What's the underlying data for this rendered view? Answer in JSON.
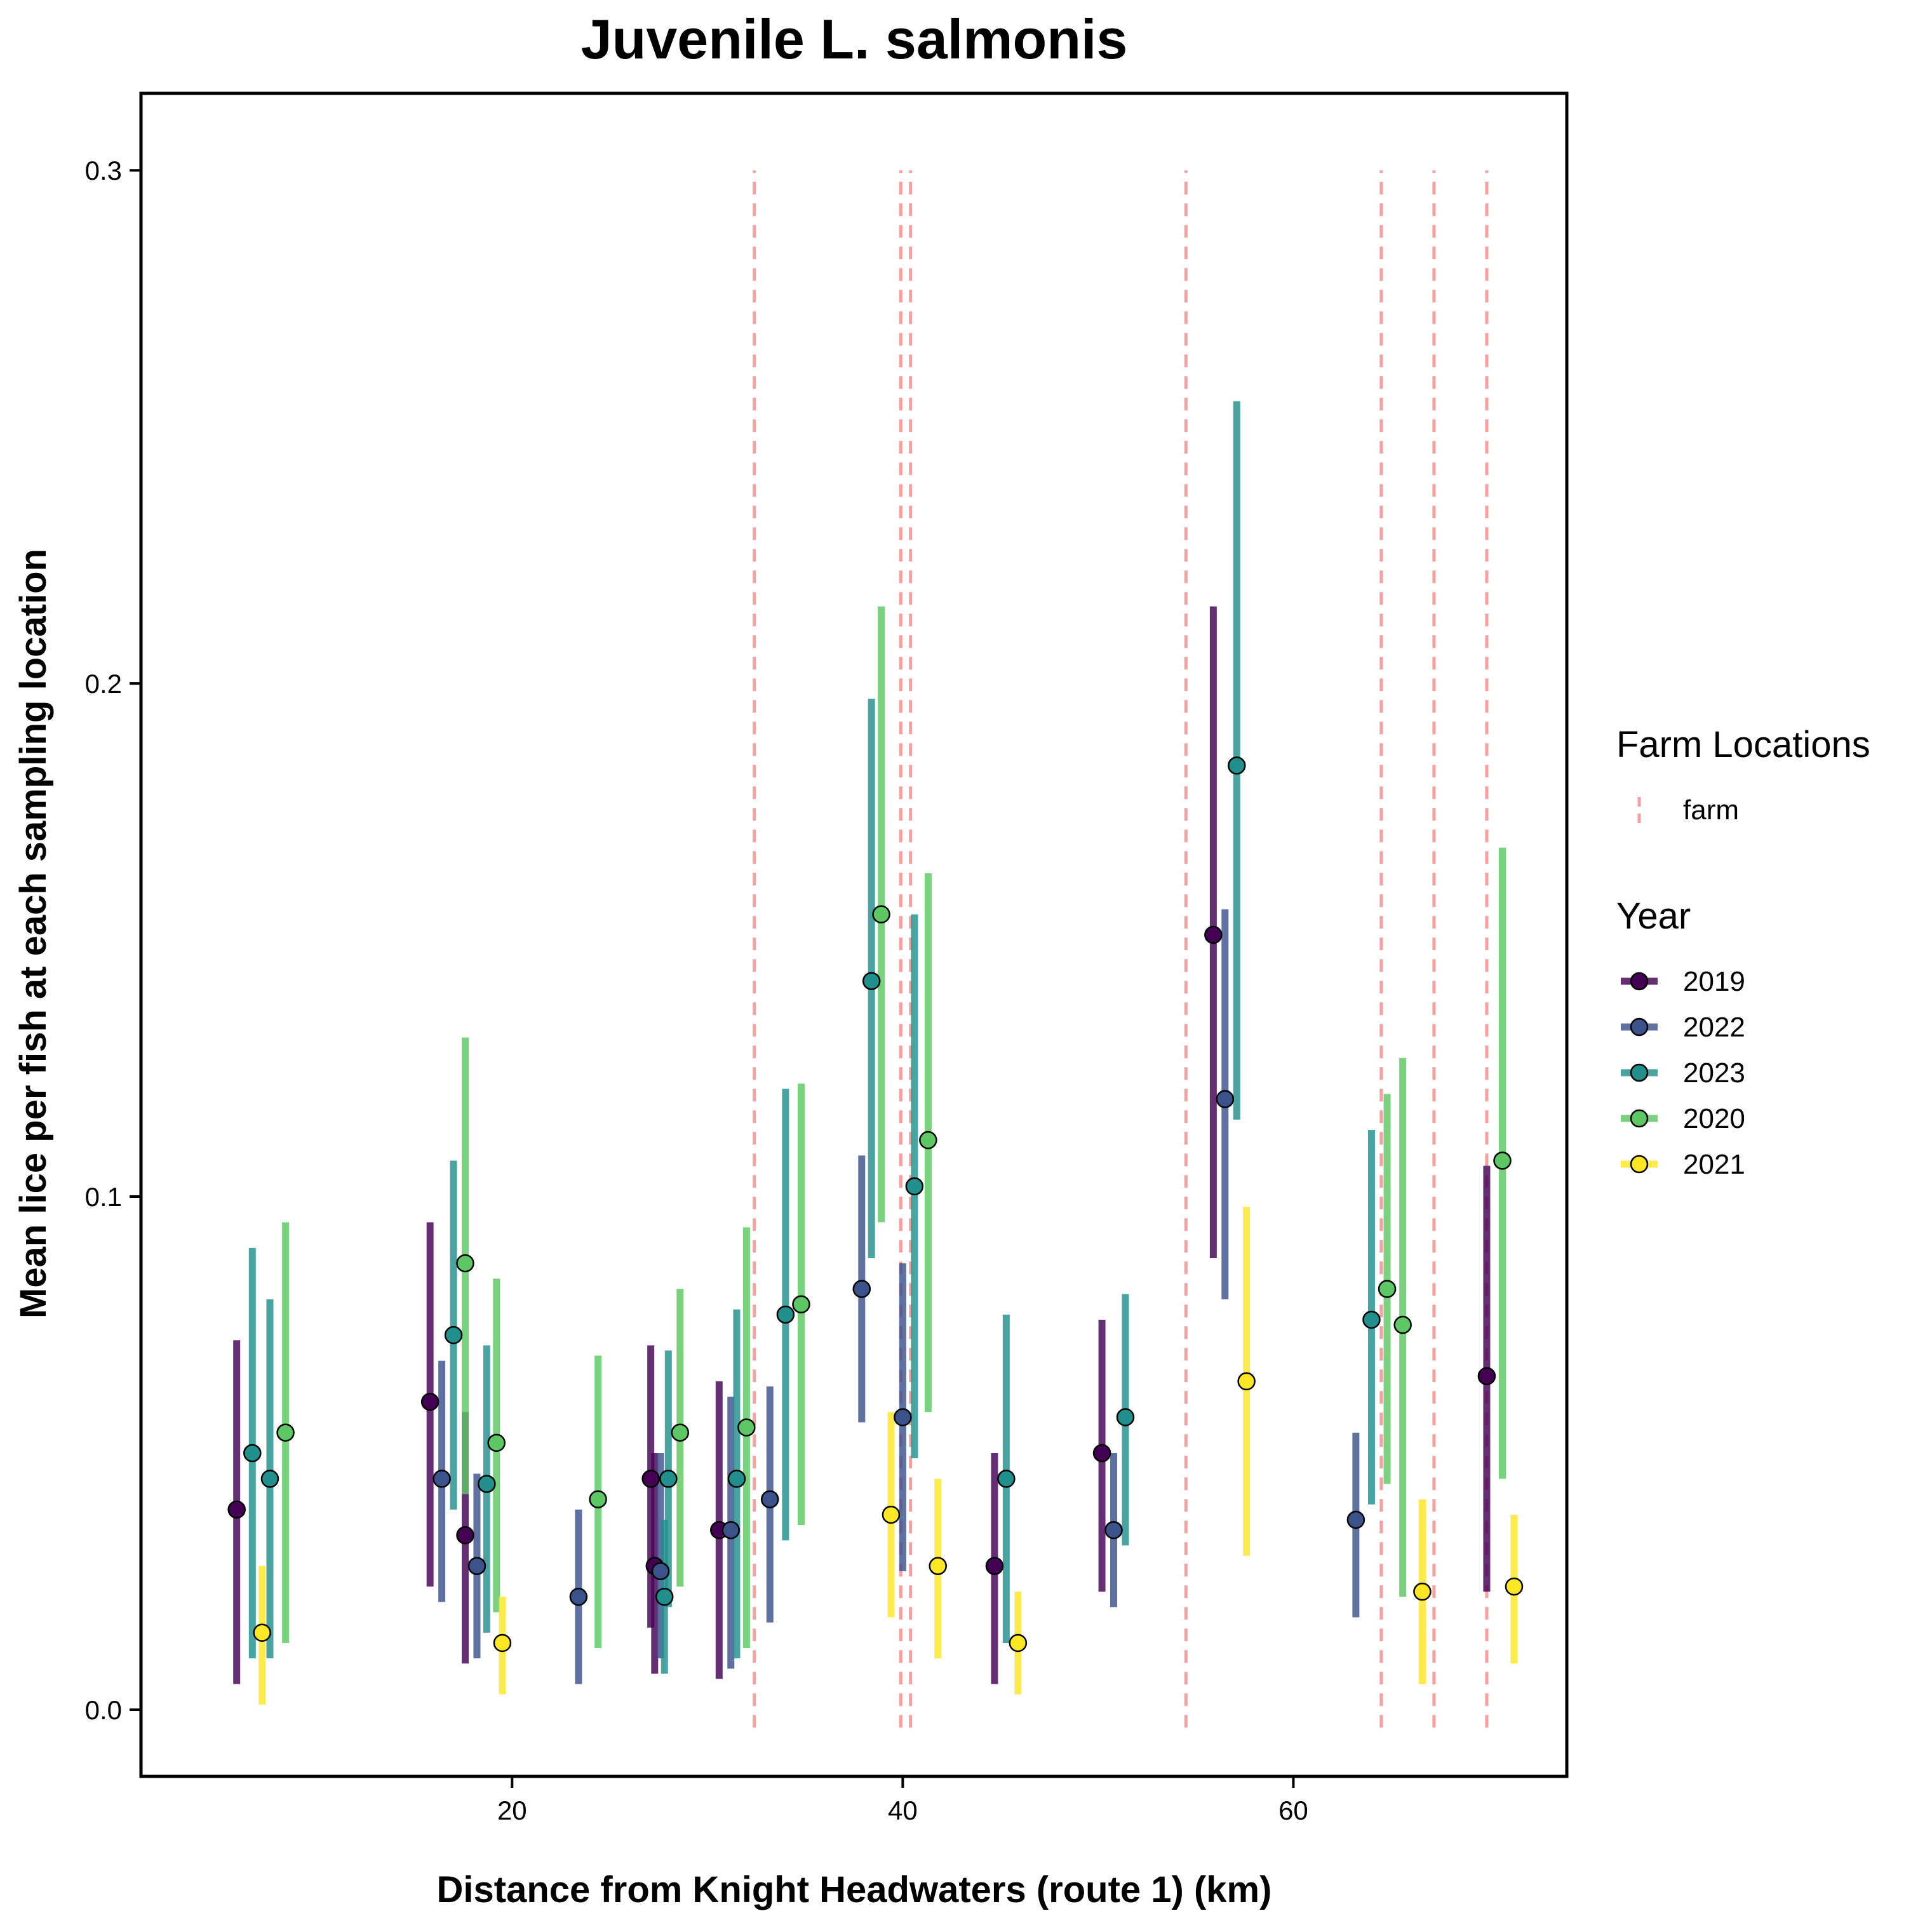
{
  "chart_data": {
    "type": "errorbar-scatter",
    "title": "Juvenile L. salmonis",
    "xlabel": "Distance from Knight Headwaters (route 1) (km)",
    "ylabel": "Mean lice per fish at each sampling location",
    "xlim": [
      1,
      74
    ],
    "ylim": [
      -0.013,
      0.315
    ],
    "xticks": [
      20,
      40,
      60
    ],
    "yticks": [
      0.0,
      0.1,
      0.2,
      0.3
    ],
    "xtick_labels": [
      "20",
      "40",
      "60"
    ],
    "ytick_labels": [
      "0.0",
      "0.1",
      "0.2",
      "0.3"
    ],
    "grid": false,
    "farm_legend": {
      "title": "Farm Locations",
      "label": "farm",
      "color": "#F8A0A0"
    },
    "year_legend_title": "Year",
    "legend_position": "right",
    "farms": [
      32.4,
      39.9,
      40.4,
      54.5,
      64.5,
      67.2,
      69.9
    ],
    "farm_ymax": 0.3,
    "series": [
      {
        "name": "2019",
        "color": "#440154",
        "points": [
          {
            "x": 5.9,
            "y": 0.039,
            "lo": 0.005,
            "hi": 0.072
          },
          {
            "x": 15.8,
            "y": 0.06,
            "lo": 0.024,
            "hi": 0.095
          },
          {
            "x": 17.6,
            "y": 0.034,
            "lo": 0.009,
            "hi": 0.058
          },
          {
            "x": 27.1,
            "y": 0.045,
            "lo": 0.016,
            "hi": 0.071
          },
          {
            "x": 27.3,
            "y": 0.028,
            "lo": 0.007,
            "hi": 0.05
          },
          {
            "x": 30.6,
            "y": 0.035,
            "lo": 0.006,
            "hi": 0.064
          },
          {
            "x": 44.7,
            "y": 0.028,
            "lo": 0.005,
            "hi": 0.05
          },
          {
            "x": 50.2,
            "y": 0.05,
            "lo": 0.023,
            "hi": 0.076
          },
          {
            "x": 55.9,
            "y": 0.151,
            "lo": 0.088,
            "hi": 0.215
          },
          {
            "x": 69.9,
            "y": 0.065,
            "lo": 0.023,
            "hi": 0.106
          }
        ]
      },
      {
        "name": "2022",
        "color": "#3B528B",
        "points": [
          {
            "x": 16.4,
            "y": 0.045,
            "lo": 0.021,
            "hi": 0.068
          },
          {
            "x": 18.2,
            "y": 0.028,
            "lo": 0.01,
            "hi": 0.046
          },
          {
            "x": 23.4,
            "y": 0.022,
            "lo": 0.005,
            "hi": 0.039
          },
          {
            "x": 27.6,
            "y": 0.027,
            "lo": 0.01,
            "hi": 0.05
          },
          {
            "x": 31.2,
            "y": 0.035,
            "lo": 0.008,
            "hi": 0.061
          },
          {
            "x": 33.2,
            "y": 0.041,
            "lo": 0.017,
            "hi": 0.063
          },
          {
            "x": 37.9,
            "y": 0.082,
            "lo": 0.056,
            "hi": 0.108
          },
          {
            "x": 40.0,
            "y": 0.057,
            "lo": 0.027,
            "hi": 0.087
          },
          {
            "x": 50.8,
            "y": 0.035,
            "lo": 0.02,
            "hi": 0.05
          },
          {
            "x": 56.5,
            "y": 0.119,
            "lo": 0.08,
            "hi": 0.156
          },
          {
            "x": 63.2,
            "y": 0.037,
            "lo": 0.018,
            "hi": 0.054
          }
        ]
      },
      {
        "name": "2023",
        "color": "#21908C",
        "points": [
          {
            "x": 6.7,
            "y": 0.05,
            "lo": 0.01,
            "hi": 0.09
          },
          {
            "x": 7.6,
            "y": 0.045,
            "lo": 0.01,
            "hi": 0.08
          },
          {
            "x": 17.0,
            "y": 0.073,
            "lo": 0.039,
            "hi": 0.107
          },
          {
            "x": 18.7,
            "y": 0.044,
            "lo": 0.015,
            "hi": 0.071
          },
          {
            "x": 27.8,
            "y": 0.022,
            "lo": 0.007,
            "hi": 0.037
          },
          {
            "x": 28.0,
            "y": 0.045,
            "lo": 0.02,
            "hi": 0.07
          },
          {
            "x": 31.5,
            "y": 0.045,
            "lo": 0.01,
            "hi": 0.078
          },
          {
            "x": 34.0,
            "y": 0.077,
            "lo": 0.033,
            "hi": 0.121
          },
          {
            "x": 38.4,
            "y": 0.142,
            "lo": 0.088,
            "hi": 0.197
          },
          {
            "x": 40.6,
            "y": 0.102,
            "lo": 0.049,
            "hi": 0.155
          },
          {
            "x": 45.3,
            "y": 0.045,
            "lo": 0.013,
            "hi": 0.077
          },
          {
            "x": 51.4,
            "y": 0.057,
            "lo": 0.032,
            "hi": 0.081
          },
          {
            "x": 57.1,
            "y": 0.184,
            "lo": 0.115,
            "hi": 0.255
          },
          {
            "x": 64.0,
            "y": 0.076,
            "lo": 0.04,
            "hi": 0.113
          }
        ]
      },
      {
        "name": "2020",
        "color": "#5DC863",
        "points": [
          {
            "x": 8.4,
            "y": 0.054,
            "lo": 0.013,
            "hi": 0.095
          },
          {
            "x": 17.6,
            "y": 0.087,
            "lo": 0.042,
            "hi": 0.131
          },
          {
            "x": 19.2,
            "y": 0.052,
            "lo": 0.019,
            "hi": 0.084
          },
          {
            "x": 24.4,
            "y": 0.041,
            "lo": 0.012,
            "hi": 0.069
          },
          {
            "x": 28.6,
            "y": 0.054,
            "lo": 0.024,
            "hi": 0.082
          },
          {
            "x": 32.0,
            "y": 0.055,
            "lo": 0.012,
            "hi": 0.094
          },
          {
            "x": 34.8,
            "y": 0.079,
            "lo": 0.036,
            "hi": 0.122
          },
          {
            "x": 38.9,
            "y": 0.155,
            "lo": 0.095,
            "hi": 0.215
          },
          {
            "x": 41.3,
            "y": 0.111,
            "lo": 0.058,
            "hi": 0.163
          },
          {
            "x": 64.8,
            "y": 0.082,
            "lo": 0.044,
            "hi": 0.12
          },
          {
            "x": 65.6,
            "y": 0.075,
            "lo": 0.022,
            "hi": 0.127
          },
          {
            "x": 70.7,
            "y": 0.107,
            "lo": 0.045,
            "hi": 0.168
          }
        ]
      },
      {
        "name": "2021",
        "color": "#FDE725",
        "points": [
          {
            "x": 7.2,
            "y": 0.015,
            "lo": 0.001,
            "hi": 0.028
          },
          {
            "x": 19.5,
            "y": 0.013,
            "lo": 0.003,
            "hi": 0.022
          },
          {
            "x": 39.4,
            "y": 0.038,
            "lo": 0.018,
            "hi": 0.058
          },
          {
            "x": 41.8,
            "y": 0.028,
            "lo": 0.01,
            "hi": 0.045
          },
          {
            "x": 45.9,
            "y": 0.013,
            "lo": 0.003,
            "hi": 0.023
          },
          {
            "x": 57.6,
            "y": 0.064,
            "lo": 0.03,
            "hi": 0.098
          },
          {
            "x": 66.6,
            "y": 0.023,
            "lo": 0.005,
            "hi": 0.041
          },
          {
            "x": 71.3,
            "y": 0.024,
            "lo": 0.009,
            "hi": 0.038
          }
        ]
      }
    ]
  }
}
